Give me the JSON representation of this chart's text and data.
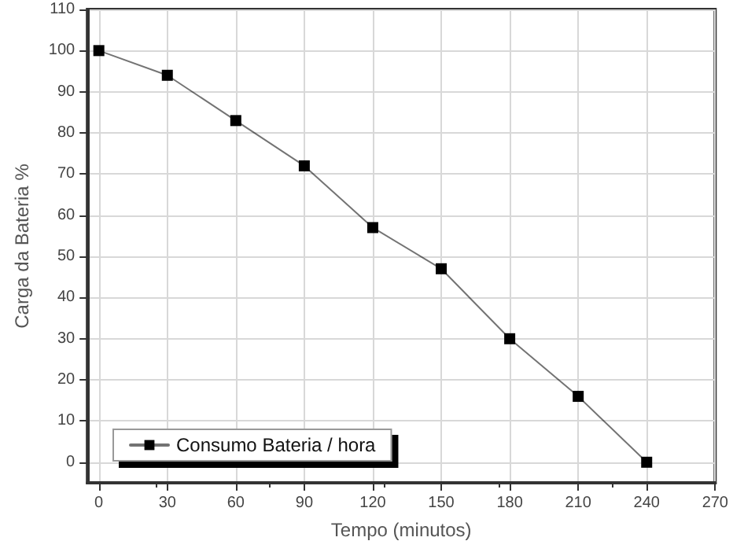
{
  "chart_data": {
    "type": "line",
    "xlabel": "Tempo (minutos)",
    "ylabel": "Carga da Bateria %",
    "x": [
      0,
      30,
      60,
      90,
      120,
      150,
      180,
      210,
      240
    ],
    "series": [
      {
        "name": "Consumo Bateria / hora",
        "color": "#000000",
        "values": [
          100,
          94,
          83,
          72,
          57,
          47,
          30,
          16,
          0
        ]
      }
    ],
    "xlim": [
      -5,
      270
    ],
    "xticks": [
      0,
      30,
      60,
      90,
      120,
      150,
      180,
      210,
      240,
      270
    ],
    "ylim": [
      -5,
      110
    ],
    "yticks": [
      0,
      10,
      20,
      30,
      40,
      50,
      60,
      70,
      80,
      90,
      100,
      110
    ],
    "grid": true,
    "legend": "bottom left",
    "marker": "square",
    "line_style": "solid"
  }
}
